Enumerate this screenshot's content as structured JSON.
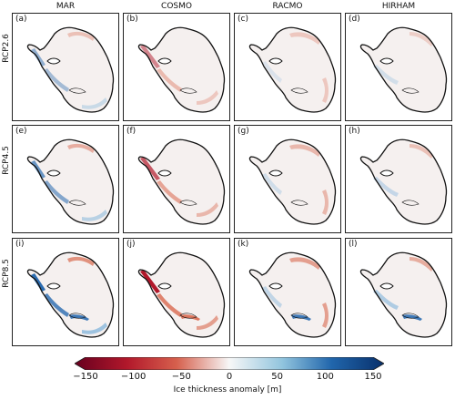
{
  "columns": [
    "MAR",
    "COSMO",
    "RACMO",
    "HIRHAM"
  ],
  "rows": [
    "RCP2.6",
    "RCP4.5",
    "RCP8.5"
  ],
  "panels": [
    "(a)",
    "(b)",
    "(c)",
    "(d)",
    "(e)",
    "(f)",
    "(g)",
    "(h)",
    "(i)",
    "(j)",
    "(k)",
    "(l)"
  ],
  "colorbar": {
    "label": "Ice thickness anomaly [m]",
    "ticks": [
      "−150",
      "−100",
      "−50",
      "0",
      "50",
      "100",
      "150"
    ],
    "range": [
      -150,
      150
    ],
    "colormap": "red-white-blue",
    "colors": {
      "min": "#67001f",
      "neg": "#d6604d",
      "zero": "#f7f7f7",
      "pos": "#4393c3",
      "max": "#08306b"
    }
  },
  "map_colors": {
    "ice": "#f5f0ef",
    "coast": "#111111",
    "red_anom": "#d9694f",
    "blue_anom": "#2b6cb0",
    "pale_blue": "#9ec3e0"
  }
}
